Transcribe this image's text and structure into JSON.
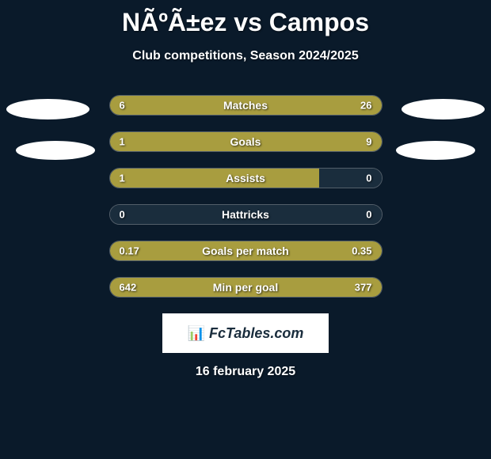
{
  "title": "NÃºÃ±ez vs Campos",
  "subtitle": "Club competitions, Season 2024/2025",
  "date": "16 february 2025",
  "logo_text": "FcTables.com",
  "background_color": "#0a1a2a",
  "bar_fill_color": "#a89d3f",
  "bar_bg_color": "#1a2d3d",
  "text_color": "#ffffff",
  "ellipse_color": "#ffffff",
  "stats": [
    {
      "label": "Matches",
      "left_value": "6",
      "right_value": "26",
      "left_pct": 18.75,
      "right_pct": 81.25
    },
    {
      "label": "Goals",
      "left_value": "1",
      "right_value": "9",
      "left_pct": 20,
      "right_pct": 80
    },
    {
      "label": "Assists",
      "left_value": "1",
      "right_value": "0",
      "left_pct": 77,
      "right_pct": 0
    },
    {
      "label": "Hattricks",
      "left_value": "0",
      "right_value": "0",
      "left_pct": 0,
      "right_pct": 0
    },
    {
      "label": "Goals per match",
      "left_value": "0.17",
      "right_value": "0.35",
      "left_pct": 30,
      "right_pct": 70
    },
    {
      "label": "Min per goal",
      "left_value": "642",
      "right_value": "377",
      "left_pct": 35,
      "right_pct": 65
    }
  ]
}
